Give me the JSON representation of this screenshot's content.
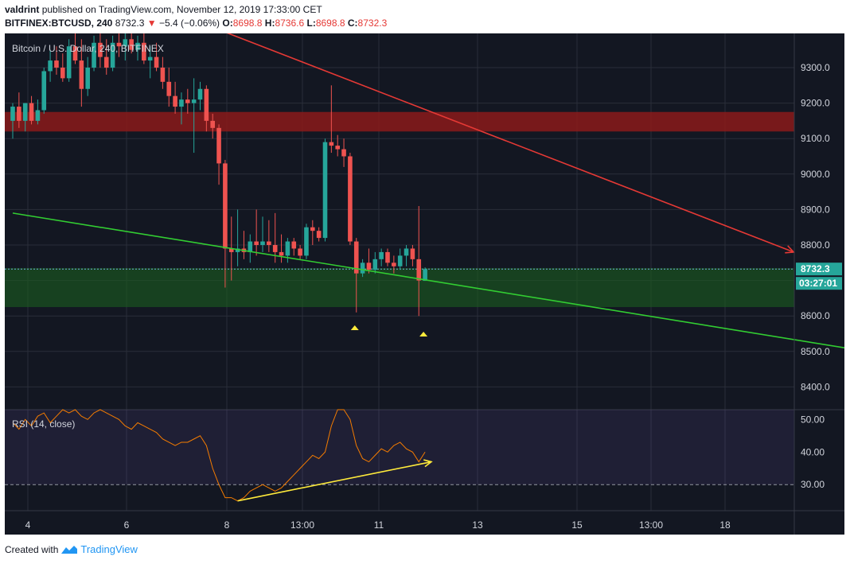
{
  "header": {
    "author": "valdrint",
    "published_text": "published on TradingView.com, November 12, 2019 17:33:00 CET",
    "symbol": "BITFINEX:BTCUSD, 240",
    "last": "8732.3",
    "change": "−5.4 (−0.06%)",
    "o_label": "O:",
    "o_value": "8698.8",
    "h_label": "H:",
    "h_value": "8736.6",
    "l_label": "L:",
    "l_value": "8698.8",
    "c_label": "C:",
    "c_value": "8732.3"
  },
  "chart": {
    "legend": "Bitcoin / U.S. Dollar, 240, BITFINEX",
    "price_ticks": [
      "9300.0",
      "9200.0",
      "9100.0",
      "9000.0",
      "8900.0",
      "8800.0",
      "8600.0",
      "8500.0",
      "8400.0"
    ],
    "last_price_label": "8732.3",
    "countdown_label": "03:27:01",
    "rsi_label": "RSI (14, close)",
    "rsi_ticks": [
      "50.00",
      "40.00",
      "30.00"
    ],
    "time_ticks": [
      "4",
      "6",
      "8",
      "13:00",
      "11",
      "13",
      "15",
      "13:00",
      "18"
    ]
  },
  "colors": {
    "background": "#131722",
    "up": "#26a69a",
    "down": "#ef5350",
    "resistance_zone": "#8b1a1a",
    "support_zone": "#1b5e20",
    "red_trendline": "#e53935",
    "green_trendline": "#32cd32",
    "rsi_line": "#f57c00",
    "rsi_trend": "#ffeb3b",
    "marker": "#ffeb3b",
    "price_label_bg": "#26a69a"
  },
  "footer": {
    "created_with": "Created with",
    "brand": "TradingView"
  },
  "chart_data": {
    "type": "candlestick",
    "title": "Bitcoin / U.S. Dollar, 240, BITFINEX",
    "ylim": [
      8350,
      9430
    ],
    "candles": [
      {
        "o": 9150,
        "h": 9200,
        "l": 9100,
        "c": 9190
      },
      {
        "o": 9190,
        "h": 9230,
        "l": 9130,
        "c": 9150
      },
      {
        "o": 9150,
        "h": 9200,
        "l": 9120,
        "c": 9200
      },
      {
        "o": 9200,
        "h": 9220,
        "l": 9140,
        "c": 9150
      },
      {
        "o": 9150,
        "h": 9210,
        "l": 9140,
        "c": 9180
      },
      {
        "o": 9180,
        "h": 9300,
        "l": 9170,
        "c": 9290
      },
      {
        "o": 9290,
        "h": 9350,
        "l": 9260,
        "c": 9320
      },
      {
        "o": 9320,
        "h": 9360,
        "l": 9280,
        "c": 9300
      },
      {
        "o": 9300,
        "h": 9340,
        "l": 9260,
        "c": 9270
      },
      {
        "o": 9270,
        "h": 9380,
        "l": 9260,
        "c": 9360
      },
      {
        "o": 9360,
        "h": 9400,
        "l": 9310,
        "c": 9320
      },
      {
        "o": 9320,
        "h": 9380,
        "l": 9190,
        "c": 9240
      },
      {
        "o": 9240,
        "h": 9330,
        "l": 9220,
        "c": 9300
      },
      {
        "o": 9300,
        "h": 9390,
        "l": 9290,
        "c": 9370
      },
      {
        "o": 9370,
        "h": 9420,
        "l": 9300,
        "c": 9330
      },
      {
        "o": 9330,
        "h": 9380,
        "l": 9280,
        "c": 9300
      },
      {
        "o": 9300,
        "h": 9390,
        "l": 9290,
        "c": 9370
      },
      {
        "o": 9370,
        "h": 9410,
        "l": 9330,
        "c": 9360
      },
      {
        "o": 9360,
        "h": 9400,
        "l": 9320,
        "c": 9380
      },
      {
        "o": 9380,
        "h": 9420,
        "l": 9340,
        "c": 9350
      },
      {
        "o": 9350,
        "h": 9390,
        "l": 9320,
        "c": 9370
      },
      {
        "o": 9370,
        "h": 9400,
        "l": 9310,
        "c": 9320
      },
      {
        "o": 9320,
        "h": 9360,
        "l": 9270,
        "c": 9330
      },
      {
        "o": 9330,
        "h": 9370,
        "l": 9290,
        "c": 9300
      },
      {
        "o": 9300,
        "h": 9330,
        "l": 9240,
        "c": 9260
      },
      {
        "o": 9260,
        "h": 9300,
        "l": 9190,
        "c": 9220
      },
      {
        "o": 9220,
        "h": 9260,
        "l": 9170,
        "c": 9190
      },
      {
        "o": 9190,
        "h": 9230,
        "l": 9140,
        "c": 9210
      },
      {
        "o": 9210,
        "h": 9240,
        "l": 9170,
        "c": 9200
      },
      {
        "o": 9200,
        "h": 9270,
        "l": 9060,
        "c": 9210
      },
      {
        "o": 9210,
        "h": 9260,
        "l": 9180,
        "c": 9240
      },
      {
        "o": 9240,
        "h": 9250,
        "l": 9120,
        "c": 9150
      },
      {
        "o": 9150,
        "h": 9170,
        "l": 9100,
        "c": 9130
      },
      {
        "o": 9130,
        "h": 9140,
        "l": 8970,
        "c": 9030
      },
      {
        "o": 9030,
        "h": 9040,
        "l": 8680,
        "c": 8790
      },
      {
        "o": 8790,
        "h": 8880,
        "l": 8700,
        "c": 8780
      },
      {
        "o": 8780,
        "h": 8900,
        "l": 8740,
        "c": 8790
      },
      {
        "o": 8790,
        "h": 8840,
        "l": 8760,
        "c": 8780
      },
      {
        "o": 8780,
        "h": 8830,
        "l": 8750,
        "c": 8810
      },
      {
        "o": 8810,
        "h": 8900,
        "l": 8770,
        "c": 8800
      },
      {
        "o": 8800,
        "h": 8880,
        "l": 8780,
        "c": 8810
      },
      {
        "o": 8810,
        "h": 8870,
        "l": 8780,
        "c": 8800
      },
      {
        "o": 8800,
        "h": 8890,
        "l": 8750,
        "c": 8780
      },
      {
        "o": 8780,
        "h": 8830,
        "l": 8750,
        "c": 8770
      },
      {
        "o": 8770,
        "h": 8820,
        "l": 8750,
        "c": 8810
      },
      {
        "o": 8810,
        "h": 8820,
        "l": 8770,
        "c": 8790
      },
      {
        "o": 8790,
        "h": 8800,
        "l": 8760,
        "c": 8770
      },
      {
        "o": 8770,
        "h": 8860,
        "l": 8760,
        "c": 8850
      },
      {
        "o": 8850,
        "h": 8870,
        "l": 8800,
        "c": 8840
      },
      {
        "o": 8840,
        "h": 8850,
        "l": 8810,
        "c": 8820
      },
      {
        "o": 8820,
        "h": 9100,
        "l": 8810,
        "c": 9090
      },
      {
        "o": 9090,
        "h": 9250,
        "l": 9060,
        "c": 9080
      },
      {
        "o": 9080,
        "h": 9110,
        "l": 9050,
        "c": 9070
      },
      {
        "o": 9070,
        "h": 9100,
        "l": 9020,
        "c": 9050
      },
      {
        "o": 9050,
        "h": 9060,
        "l": 8800,
        "c": 8810
      },
      {
        "o": 8810,
        "h": 8820,
        "l": 8610,
        "c": 8720
      },
      {
        "o": 8720,
        "h": 8760,
        "l": 8710,
        "c": 8750
      },
      {
        "o": 8750,
        "h": 8790,
        "l": 8720,
        "c": 8730
      },
      {
        "o": 8730,
        "h": 8780,
        "l": 8720,
        "c": 8760
      },
      {
        "o": 8760,
        "h": 8790,
        "l": 8740,
        "c": 8780
      },
      {
        "o": 8780,
        "h": 8790,
        "l": 8740,
        "c": 8750
      },
      {
        "o": 8750,
        "h": 8770,
        "l": 8720,
        "c": 8740
      },
      {
        "o": 8740,
        "h": 8790,
        "l": 8730,
        "c": 8770
      },
      {
        "o": 8770,
        "h": 8800,
        "l": 8740,
        "c": 8790
      },
      {
        "o": 8790,
        "h": 8800,
        "l": 8740,
        "c": 8760
      },
      {
        "o": 8760,
        "h": 8910,
        "l": 8600,
        "c": 8700
      },
      {
        "o": 8699,
        "h": 8737,
        "l": 8699,
        "c": 8732
      }
    ],
    "zones": [
      {
        "label": "resistance",
        "from": 9120,
        "to": 9175
      },
      {
        "label": "support",
        "from": 8625,
        "to": 8735
      }
    ],
    "trendlines": [
      {
        "color": "red",
        "from": {
          "bar": 34,
          "price": 9400
        },
        "to": {
          "bar": 125,
          "price": 8780
        }
      },
      {
        "color": "green",
        "from": {
          "bar": 0,
          "price": 8890
        },
        "to": {
          "bar": 135,
          "price": 8505
        }
      }
    ],
    "markers_bars": [
      55,
      66
    ],
    "rsi": {
      "ylim": [
        22,
        53
      ],
      "values": [
        49,
        47,
        50,
        48,
        51,
        52,
        49,
        51,
        53,
        52,
        53,
        51,
        50,
        52,
        53,
        52,
        51,
        50,
        48,
        47,
        49,
        48,
        47,
        46,
        44,
        43,
        42,
        43,
        43,
        44,
        45,
        42,
        35,
        30,
        26,
        26,
        25,
        26,
        28,
        29,
        30,
        29,
        28,
        29,
        31,
        33,
        35,
        37,
        39,
        38,
        40,
        48,
        53,
        53,
        50,
        42,
        38,
        37,
        39,
        41,
        40,
        42,
        43,
        41,
        40,
        37,
        40
      ],
      "trend": {
        "from": {
          "bar": 36,
          "value": 25
        },
        "to": {
          "bar": 67,
          "value": 37
        }
      }
    }
  }
}
